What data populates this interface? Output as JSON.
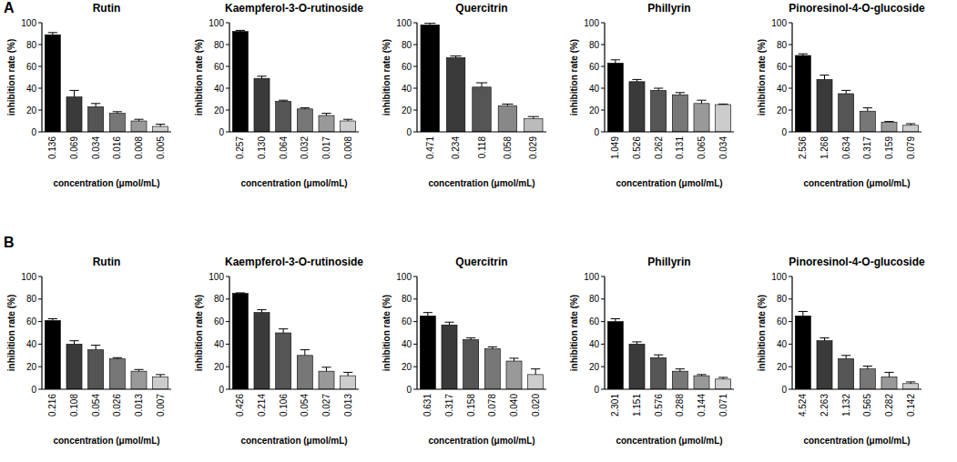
{
  "panel_labels": [
    "A",
    "B"
  ],
  "chart_data": [
    {
      "type": "bar",
      "title": "Rutin",
      "x_label": "concentration (μmol/mL)",
      "y_label": "inhibition rate (%)",
      "categories": [
        "0.136",
        "0.069",
        "0.034",
        "0.016",
        "0.008",
        "0.005"
      ],
      "values": [
        89,
        32,
        23,
        17,
        10,
        5
      ],
      "errors": [
        2,
        6,
        3,
        1.5,
        1.5,
        2
      ],
      "colors": [
        "#000000",
        "#3a3a3a",
        "#555555",
        "#777777",
        "#999999",
        "#cccccc"
      ],
      "ylim": [
        0,
        100
      ],
      "yticks": [
        0,
        20,
        40,
        60,
        80,
        100
      ]
    },
    {
      "type": "bar",
      "title": "Kaempferol-3-O-rutinoside",
      "x_label": "concentration (μmol/mL)",
      "y_label": "inhibition rate (%)",
      "categories": [
        "0.257",
        "0.130",
        "0.064",
        "0.032",
        "0.017",
        "0.008"
      ],
      "values": [
        92,
        49,
        28,
        21,
        15,
        10
      ],
      "errors": [
        1,
        2,
        1,
        1,
        2,
        1.5
      ],
      "colors": [
        "#000000",
        "#3a3a3a",
        "#555555",
        "#777777",
        "#999999",
        "#cccccc"
      ],
      "ylim": [
        0,
        100
      ],
      "yticks": [
        0,
        20,
        40,
        60,
        80,
        100
      ]
    },
    {
      "type": "bar",
      "title": "Quercitrin",
      "x_label": "concentration (μmol/mL)",
      "y_label": "inhibition rate (%)",
      "categories": [
        "0.471",
        "0.234",
        "0.118",
        "0.058",
        "0.029"
      ],
      "values": [
        98,
        68,
        41,
        24,
        12
      ],
      "errors": [
        1.5,
        1.5,
        4,
        1.5,
        2
      ],
      "colors": [
        "#000000",
        "#3a3a3a",
        "#555555",
        "#888888",
        "#bbbbbb"
      ],
      "ylim": [
        0,
        100
      ],
      "yticks": [
        0,
        20,
        40,
        60,
        80,
        100
      ]
    },
    {
      "type": "bar",
      "title": "Phillyrin",
      "x_label": "concentration (μmol/mL)",
      "y_label": "inhibition rate (%)",
      "categories": [
        "1.049",
        "0.526",
        "0.262",
        "0.131",
        "0.065",
        "0.034"
      ],
      "values": [
        63,
        46,
        38,
        34,
        26,
        25
      ],
      "errors": [
        3,
        2,
        2,
        2,
        3,
        0.5
      ],
      "colors": [
        "#000000",
        "#3a3a3a",
        "#555555",
        "#777777",
        "#999999",
        "#cccccc"
      ],
      "ylim": [
        0,
        100
      ],
      "yticks": [
        0,
        20,
        40,
        60,
        80,
        100
      ]
    },
    {
      "type": "bar",
      "title": "Pinoresinol-4-O-glucoside",
      "x_label": "concentration (μmol/mL)",
      "y_label": "inhibition rate (%)",
      "categories": [
        "2.536",
        "1.268",
        "0.634",
        "0.317",
        "0.159",
        "0.079"
      ],
      "values": [
        70,
        48,
        35,
        19,
        9,
        6
      ],
      "errors": [
        1.5,
        4,
        3,
        3,
        0.5,
        1.5
      ],
      "colors": [
        "#000000",
        "#3a3a3a",
        "#555555",
        "#777777",
        "#999999",
        "#cccccc"
      ],
      "ylim": [
        0,
        100
      ],
      "yticks": [
        0,
        20,
        40,
        60,
        80,
        100
      ]
    },
    {
      "type": "bar",
      "title": "Rutin",
      "x_label": "concentration (μmol/mL)",
      "y_label": "inhibition rate (%)",
      "categories": [
        "0.216",
        "0.108",
        "0.054",
        "0.026",
        "0.013",
        "0.007"
      ],
      "values": [
        61,
        40,
        35,
        27,
        16,
        11
      ],
      "errors": [
        1.5,
        3,
        4,
        1,
        1.5,
        2
      ],
      "colors": [
        "#000000",
        "#3a3a3a",
        "#555555",
        "#777777",
        "#999999",
        "#cccccc"
      ],
      "ylim": [
        0,
        100
      ],
      "yticks": [
        0,
        20,
        40,
        60,
        80,
        100
      ]
    },
    {
      "type": "bar",
      "title": "Kaempferol-3-O-rutinoside",
      "x_label": "concentration (μmol/mL)",
      "y_label": "inhibition rate (%)",
      "categories": [
        "0.426",
        "0.214",
        "0.106",
        "0.054",
        "0.027",
        "0.013"
      ],
      "values": [
        85,
        68,
        50,
        30,
        16,
        12
      ],
      "errors": [
        0.5,
        2.5,
        3.5,
        5,
        3.5,
        3
      ],
      "colors": [
        "#000000",
        "#3a3a3a",
        "#555555",
        "#777777",
        "#999999",
        "#cccccc"
      ],
      "ylim": [
        0,
        100
      ],
      "yticks": [
        0,
        20,
        40,
        60,
        80,
        100
      ]
    },
    {
      "type": "bar",
      "title": "Quercitrin",
      "x_label": "concentration (μmol/mL)",
      "y_label": "inhibition rate (%)",
      "categories": [
        "0.631",
        "0.317",
        "0.158",
        "0.078",
        "0.040",
        "0.020"
      ],
      "values": [
        65,
        57,
        44,
        36,
        25,
        13
      ],
      "errors": [
        3,
        2.5,
        1.5,
        1.5,
        2.5,
        5
      ],
      "colors": [
        "#000000",
        "#3a3a3a",
        "#555555",
        "#777777",
        "#999999",
        "#cccccc"
      ],
      "ylim": [
        0,
        100
      ],
      "yticks": [
        0,
        20,
        40,
        60,
        80,
        100
      ]
    },
    {
      "type": "bar",
      "title": "Phillyrin",
      "x_label": "concentration (μmol/mL)",
      "y_label": "inhibition rate (%)",
      "categories": [
        "2.301",
        "1.151",
        "0.576",
        "0.288",
        "0.144",
        "0.071"
      ],
      "values": [
        60,
        40,
        28,
        16,
        12,
        9
      ],
      "errors": [
        2.5,
        2,
        2.5,
        2,
        1,
        1.5
      ],
      "colors": [
        "#000000",
        "#3a3a3a",
        "#555555",
        "#777777",
        "#999999",
        "#cccccc"
      ],
      "ylim": [
        0,
        100
      ],
      "yticks": [
        0,
        20,
        40,
        60,
        80,
        100
      ]
    },
    {
      "type": "bar",
      "title": "Pinoresinol-4-O-glucoside",
      "x_label": "concentration (μmol/mL)",
      "y_label": "inhibition rate (%)",
      "categories": [
        "4.524",
        "2.263",
        "1.132",
        "0.565",
        "0.282",
        "0.142"
      ],
      "values": [
        65,
        43,
        27,
        18,
        11,
        5
      ],
      "errors": [
        4,
        2.5,
        3,
        2.5,
        4,
        1.5
      ],
      "colors": [
        "#000000",
        "#3a3a3a",
        "#555555",
        "#777777",
        "#999999",
        "#cccccc"
      ],
      "ylim": [
        0,
        100
      ],
      "yticks": [
        0,
        20,
        40,
        60,
        80,
        100
      ]
    }
  ]
}
